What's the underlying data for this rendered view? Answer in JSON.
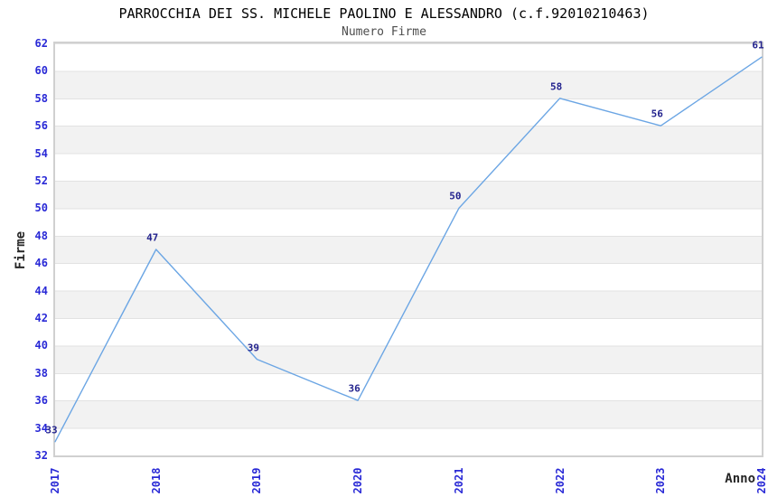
{
  "chart_data": {
    "type": "line",
    "title": "PARROCCHIA DEI SS. MICHELE PAOLINO E ALESSANDRO (c.f.92010210463)",
    "subtitle": "Numero Firme",
    "xlabel": "Anno",
    "ylabel": "Firme",
    "categories": [
      "2017",
      "2018",
      "2019",
      "2020",
      "2021",
      "2022",
      "2023",
      "2024"
    ],
    "values": [
      33,
      47,
      39,
      36,
      50,
      58,
      56,
      61
    ],
    "ylim": [
      32,
      62
    ],
    "ytick_step": 2,
    "grid": "horizontal gridlines with alternating white/gray bands every 2 units",
    "legend": "none",
    "point_labels_shown": true,
    "colors": {
      "line": "#6CA6E4",
      "point_label": "#23238E",
      "tick_label": "#2929D6",
      "band_gray": "#F2F2F2",
      "gridline": "#E2E2E2",
      "plot_border": "#D0D0D0",
      "title": "#000000",
      "subtitle": "#4D4D4D",
      "axis_title": "#262626"
    }
  }
}
